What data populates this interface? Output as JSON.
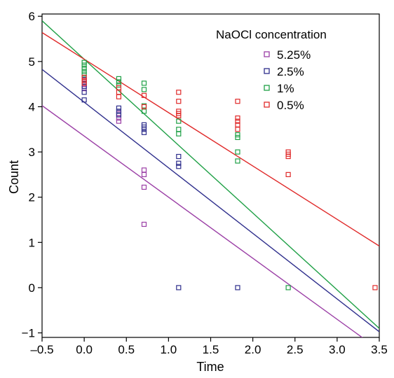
{
  "chart_data": {
    "type": "scatter",
    "xlabel": "Time",
    "ylabel": "Count",
    "xlim": [
      -0.5,
      3.5
    ],
    "ylim": [
      -1.1,
      6.05
    ],
    "xticks": [
      -0.5,
      0.0,
      0.5,
      1.0,
      1.5,
      2.0,
      2.5,
      3.0,
      3.5
    ],
    "xtick_labels": [
      "–0.5",
      "0.0",
      "0.5",
      "1.0",
      "1.5",
      "2.0",
      "2.5",
      "3.0",
      "3.5"
    ],
    "yticks": [
      -1,
      0,
      1,
      2,
      3,
      4,
      5,
      6
    ],
    "ytick_labels": [
      "−1",
      "0",
      "1",
      "2",
      "3",
      "4",
      "5",
      "6"
    ],
    "grid": false,
    "legend": {
      "title": "NaOCl concentration",
      "position": "top-right"
    },
    "series": [
      {
        "name": "5.25%",
        "color": "#9b3fa6",
        "points": [
          [
            0.0,
            4.55
          ],
          [
            0.0,
            4.5
          ],
          [
            0.0,
            4.45
          ],
          [
            0.0,
            4.4
          ],
          [
            0.41,
            3.85
          ],
          [
            0.41,
            3.75
          ],
          [
            0.41,
            3.68
          ],
          [
            0.71,
            2.6
          ],
          [
            0.71,
            2.5
          ],
          [
            0.71,
            2.22
          ],
          [
            0.71,
            1.4
          ]
        ],
        "fit": {
          "intercept": 3.35,
          "slope": -1.35
        }
      },
      {
        "name": "2.5%",
        "color": "#2e2e8c",
        "points": [
          [
            0.0,
            4.6
          ],
          [
            0.0,
            4.45
          ],
          [
            0.0,
            4.32
          ],
          [
            0.0,
            4.15
          ],
          [
            0.41,
            3.97
          ],
          [
            0.41,
            3.9
          ],
          [
            0.41,
            3.82
          ],
          [
            0.71,
            3.6
          ],
          [
            0.71,
            3.55
          ],
          [
            0.71,
            3.5
          ],
          [
            0.71,
            3.43
          ],
          [
            1.12,
            2.9
          ],
          [
            1.12,
            2.75
          ],
          [
            1.12,
            2.68
          ],
          [
            1.12,
            0.0
          ],
          [
            1.82,
            0.0
          ]
        ],
        "fit": {
          "intercept": 4.1,
          "slope": -1.45
        }
      },
      {
        "name": "1%",
        "color": "#1fa046",
        "points": [
          [
            0.0,
            4.98
          ],
          [
            0.0,
            4.92
          ],
          [
            0.0,
            4.85
          ],
          [
            0.0,
            4.78
          ],
          [
            0.0,
            4.72
          ],
          [
            0.41,
            4.62
          ],
          [
            0.41,
            4.55
          ],
          [
            0.41,
            4.48
          ],
          [
            0.71,
            4.52
          ],
          [
            0.71,
            4.38
          ],
          [
            0.71,
            4.02
          ],
          [
            0.71,
            3.9
          ],
          [
            1.12,
            3.68
          ],
          [
            1.12,
            3.5
          ],
          [
            1.12,
            3.4
          ],
          [
            1.82,
            3.38
          ],
          [
            1.82,
            3.32
          ],
          [
            1.82,
            3.0
          ],
          [
            1.82,
            2.8
          ],
          [
            2.42,
            0.0
          ]
        ],
        "fit": {
          "intercept": 5.05,
          "slope": -1.7
        }
      },
      {
        "name": "0.5%",
        "color": "#e02a2a",
        "points": [
          [
            0.0,
            4.65
          ],
          [
            0.0,
            4.58
          ],
          [
            0.0,
            4.52
          ],
          [
            0.41,
            4.42
          ],
          [
            0.41,
            4.32
          ],
          [
            0.41,
            4.22
          ],
          [
            0.71,
            4.25
          ],
          [
            0.71,
            4.0
          ],
          [
            1.12,
            4.32
          ],
          [
            1.12,
            4.12
          ],
          [
            1.12,
            3.9
          ],
          [
            1.12,
            3.85
          ],
          [
            1.12,
            3.8
          ],
          [
            1.82,
            4.12
          ],
          [
            1.82,
            3.75
          ],
          [
            1.82,
            3.68
          ],
          [
            1.82,
            3.6
          ],
          [
            1.82,
            3.5
          ],
          [
            2.42,
            3.0
          ],
          [
            2.42,
            2.95
          ],
          [
            2.42,
            2.9
          ],
          [
            2.42,
            2.5
          ],
          [
            3.45,
            0.0
          ]
        ],
        "fit": {
          "intercept": 5.05,
          "slope": -1.18
        }
      }
    ]
  }
}
